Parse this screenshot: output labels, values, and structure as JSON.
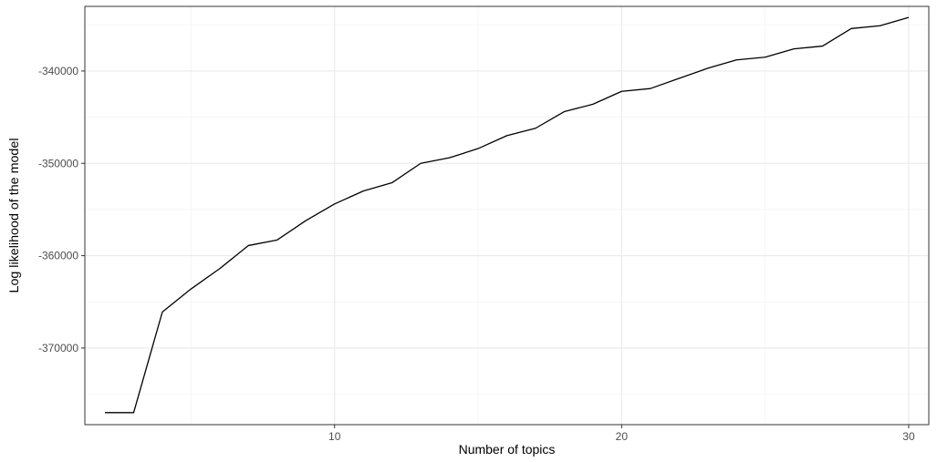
{
  "chart_data": {
    "type": "line",
    "title": "",
    "xlabel": "Number of topics",
    "ylabel": "Log likelihood of the model",
    "xlim": [
      1.3,
      30.7
    ],
    "ylim": [
      -378300,
      -333000
    ],
    "x_ticks": [
      10,
      20,
      30
    ],
    "x_tick_labels": [
      "10",
      "20",
      "30"
    ],
    "y_ticks": [
      -340000,
      -350000,
      -360000,
      -370000
    ],
    "y_tick_labels": [
      "-340000",
      "-350000",
      "-360000",
      "-370000"
    ],
    "x_minor_ticks": [
      5,
      15,
      25
    ],
    "y_minor_ticks": [
      -335000,
      -345000,
      -355000,
      -365000,
      -375000
    ],
    "grid": true,
    "legend": "none",
    "series": [
      {
        "color": "#000000",
        "x": [
          2,
          3,
          4,
          5,
          6,
          7,
          8,
          9,
          10,
          11,
          12,
          13,
          14,
          15,
          16,
          17,
          18,
          19,
          20,
          21,
          22,
          23,
          24,
          25,
          26,
          27,
          28,
          29,
          30
        ],
        "y": [
          -377000,
          -377000,
          -366100,
          -363600,
          -361400,
          -358900,
          -358300,
          -356200,
          -354400,
          -353000,
          -352100,
          -350000,
          -349400,
          -348400,
          -347000,
          -346200,
          -344400,
          -343600,
          -342200,
          -341900,
          -340800,
          -339700,
          -338800,
          -338500,
          -337600,
          -337300,
          -335400,
          -335100,
          -334200
        ]
      }
    ]
  },
  "colors": {
    "panel_border": "#333333",
    "major_grid": "#ebebeb",
    "minor_grid": "#f4f4f4",
    "line": "#000000",
    "tick_text": "#4d4d4d"
  }
}
